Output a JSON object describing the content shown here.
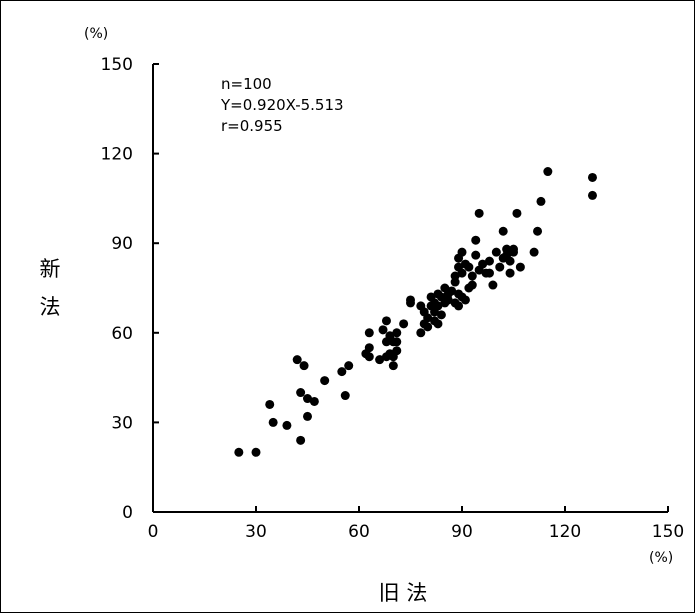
{
  "chart_data": {
    "type": "scatter",
    "title": "",
    "xlabel": "旧 法",
    "ylabel": "新 法",
    "x_unit": "(%)",
    "y_unit": "(%)",
    "xlim": [
      0,
      150
    ],
    "ylim": [
      0,
      150
    ],
    "xticks": [
      "0",
      "30",
      "60",
      "90",
      "120",
      "150"
    ],
    "yticks": [
      "0",
      "30",
      "60",
      "90",
      "120",
      "150"
    ],
    "grid": false,
    "annotations": {
      "n": "n=100",
      "equation": "Y=0.920X-5.513",
      "r": "r=0.955"
    },
    "points": [
      [
        25,
        20
      ],
      [
        30,
        20
      ],
      [
        34,
        36
      ],
      [
        35,
        30
      ],
      [
        39,
        29
      ],
      [
        42,
        51
      ],
      [
        43,
        24
      ],
      [
        43,
        40
      ],
      [
        44,
        49
      ],
      [
        45,
        32
      ],
      [
        45,
        38
      ],
      [
        47,
        37
      ],
      [
        50,
        44
      ],
      [
        55,
        47
      ],
      [
        56,
        39
      ],
      [
        57,
        49
      ],
      [
        62,
        53
      ],
      [
        63,
        55
      ],
      [
        63,
        60
      ],
      [
        63,
        52
      ],
      [
        66,
        51
      ],
      [
        67,
        61
      ],
      [
        68,
        64
      ],
      [
        68,
        57
      ],
      [
        68,
        52
      ],
      [
        69,
        53
      ],
      [
        69,
        59
      ],
      [
        70,
        52
      ],
      [
        70,
        49
      ],
      [
        70,
        57
      ],
      [
        71,
        54
      ],
      [
        71,
        60
      ],
      [
        71,
        57
      ],
      [
        73,
        63
      ],
      [
        75,
        70
      ],
      [
        75,
        71
      ],
      [
        78,
        69
      ],
      [
        78,
        60
      ],
      [
        79,
        63
      ],
      [
        79,
        67
      ],
      [
        80,
        65
      ],
      [
        80,
        62
      ],
      [
        81,
        69
      ],
      [
        81,
        72
      ],
      [
        82,
        64
      ],
      [
        82,
        70
      ],
      [
        82,
        67
      ],
      [
        83,
        69
      ],
      [
        83,
        73
      ],
      [
        83,
        63
      ],
      [
        84,
        66
      ],
      [
        84,
        72
      ],
      [
        85,
        70
      ],
      [
        85,
        75
      ],
      [
        86,
        71
      ],
      [
        86,
        73
      ],
      [
        87,
        74
      ],
      [
        88,
        77
      ],
      [
        88,
        70
      ],
      [
        88,
        79
      ],
      [
        89,
        82
      ],
      [
        89,
        73
      ],
      [
        89,
        69
      ],
      [
        89,
        85
      ],
      [
        90,
        87
      ],
      [
        90,
        80
      ],
      [
        90,
        72
      ],
      [
        91,
        83
      ],
      [
        91,
        71
      ],
      [
        92,
        75
      ],
      [
        92,
        82
      ],
      [
        93,
        79
      ],
      [
        93,
        76
      ],
      [
        94,
        91
      ],
      [
        94,
        86
      ],
      [
        95,
        100
      ],
      [
        95,
        81
      ],
      [
        96,
        83
      ],
      [
        97,
        80
      ],
      [
        98,
        84
      ],
      [
        98,
        80
      ],
      [
        99,
        76
      ],
      [
        100,
        87
      ],
      [
        101,
        82
      ],
      [
        102,
        94
      ],
      [
        102,
        85
      ],
      [
        103,
        88
      ],
      [
        103,
        86
      ],
      [
        104,
        80
      ],
      [
        104,
        84
      ],
      [
        105,
        88
      ],
      [
        106,
        100
      ],
      [
        107,
        82
      ],
      [
        111,
        87
      ],
      [
        112,
        94
      ],
      [
        113,
        104
      ],
      [
        115,
        114
      ],
      [
        128,
        112
      ],
      [
        128,
        106
      ],
      [
        105,
        87
      ]
    ]
  }
}
